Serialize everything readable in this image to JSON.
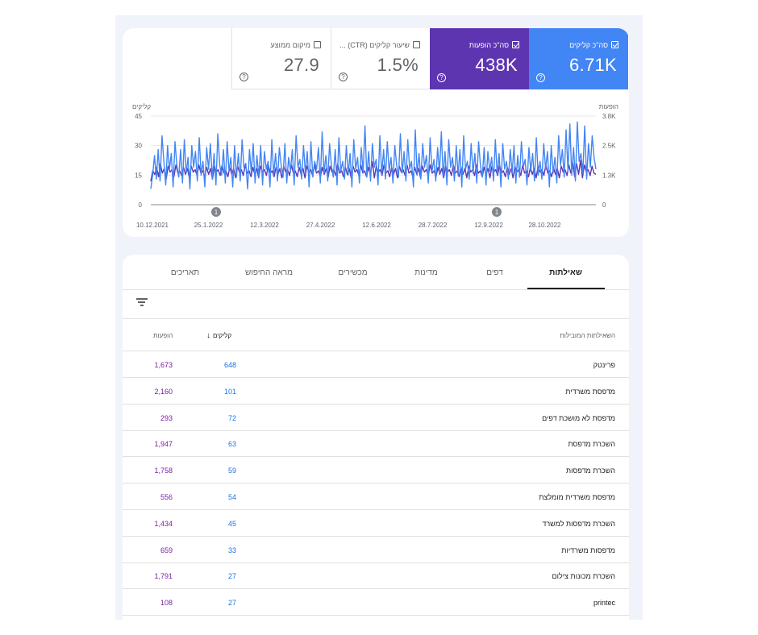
{
  "summary": {
    "clicks": {
      "label": "סה\"כ קליקים",
      "value": "6.71K",
      "checked": true,
      "color": "#4285f4"
    },
    "impressions": {
      "label": "סה\"כ הופעות",
      "value": "438K",
      "checked": true,
      "color": "#5e35b1"
    },
    "ctr": {
      "label": "שיעור קליקים (CTR) ...",
      "value": "1.5%",
      "checked": false
    },
    "position": {
      "label": "מיקום ממוצע",
      "value": "27.9",
      "checked": false
    }
  },
  "chart_data": {
    "type": "line",
    "left_axis": {
      "label": "קליקים",
      "ticks": [
        "0",
        "15",
        "30",
        "45"
      ],
      "range": [
        0,
        45
      ]
    },
    "right_axis": {
      "label": "הופעות",
      "ticks": [
        "0",
        "1.3K",
        "2.5K",
        "3.8K"
      ],
      "range": [
        0,
        3800
      ]
    },
    "x_ticks": [
      "10.12.2021",
      "25.1.2022",
      "12.3.2022",
      "27.4.2022",
      "12.6.2022",
      "28.7.2022",
      "12.9.2022",
      "28.10.2022"
    ],
    "annotations": [
      "1",
      "1"
    ],
    "series": [
      {
        "name": "קליקים",
        "color": "#4285f4",
        "axis": "left",
        "values": [
          8,
          15,
          25,
          13,
          28,
          12,
          35,
          22,
          10,
          30,
          18,
          26,
          9,
          32,
          20,
          14,
          28,
          11,
          33,
          16,
          24,
          8,
          30,
          19,
          27,
          12,
          34,
          15,
          22,
          9,
          29,
          18,
          31,
          13,
          26,
          10,
          36,
          20,
          15,
          28,
          11,
          32,
          17,
          24,
          9,
          30,
          14,
          26,
          12,
          33,
          19,
          21,
          8,
          28,
          16,
          31,
          11,
          25,
          14,
          30,
          10,
          27,
          18,
          22,
          9,
          33,
          15,
          26,
          12,
          29,
          20,
          14,
          31,
          11,
          24,
          17,
          28,
          10,
          35,
          19,
          23,
          13,
          30,
          16,
          27,
          9,
          32,
          14,
          22,
          18,
          29,
          11,
          37,
          16,
          25,
          12,
          31,
          20,
          14,
          28,
          10,
          34,
          17,
          22,
          13,
          30,
          15,
          26,
          9,
          33,
          18,
          24,
          11,
          29,
          16,
          40,
          14,
          27,
          12,
          31,
          19,
          23,
          10,
          35,
          15,
          28,
          13,
          32,
          17,
          24,
          11,
          30,
          20,
          14,
          36,
          16,
          27,
          12,
          33,
          18,
          22,
          9,
          38,
          15,
          26,
          13,
          31,
          19,
          25,
          11,
          34,
          17,
          23,
          12,
          29,
          16,
          37,
          14,
          27,
          10,
          33,
          19,
          24,
          12,
          30,
          15,
          28,
          9,
          35,
          18,
          22,
          13,
          31,
          16,
          26,
          11,
          32,
          20,
          14,
          29,
          10,
          27,
          17,
          24,
          12,
          33,
          15,
          26,
          9,
          31,
          18,
          22,
          13,
          28,
          16,
          30,
          11,
          25,
          14,
          32,
          19,
          23,
          10,
          29,
          17,
          26,
          12,
          34,
          15,
          22,
          13,
          31,
          18,
          27,
          9,
          30,
          16,
          24,
          11,
          35,
          20,
          28,
          14,
          38,
          17,
          41,
          15,
          29,
          12,
          42,
          22,
          26,
          16,
          40,
          13,
          31,
          19,
          35,
          24,
          18
        ]
      },
      {
        "name": "הופעות",
        "color": "#5e35b1",
        "axis": "right",
        "values": [
          1000,
          1450,
          1300,
          1600,
          1200,
          1750,
          1350,
          1550,
          1100,
          1650,
          1400,
          1500,
          1200,
          1700,
          1350,
          1450,
          1250,
          1600,
          1300,
          1550,
          1150,
          1650,
          1400,
          1500,
          1250,
          1700,
          1350,
          1450,
          1200,
          1600,
          1300,
          1550,
          1100,
          1650,
          1400,
          1500,
          1250,
          1700,
          1350,
          1450,
          1200,
          1600,
          1300,
          1550,
          1150,
          1650,
          1400,
          1500,
          1250,
          1700,
          1350,
          1450,
          1200,
          1600,
          1300,
          1550,
          1150,
          1650,
          1400,
          1500,
          1250,
          1700,
          1350,
          1450,
          1200,
          1600,
          1300,
          1550,
          1150,
          1650,
          1400,
          1500,
          1250,
          1700,
          1350,
          1450,
          1200,
          1600,
          1300,
          1550,
          1150,
          1650,
          1400,
          1500,
          1250,
          1700,
          1350,
          1450,
          1200,
          1600,
          1300,
          1550,
          1150,
          1650,
          1400,
          1500,
          1250,
          1750,
          1350,
          1450,
          1200,
          1600,
          1300,
          1550,
          1150,
          1650,
          1400,
          1500,
          1250,
          1700,
          1350,
          1450,
          1200,
          1600,
          1300,
          1850,
          1150,
          1650,
          1400,
          1500,
          1250,
          1700,
          1350,
          1450,
          1200,
          1600,
          1300,
          1550,
          1150,
          1650,
          1400,
          1500,
          1250,
          1700,
          1350,
          1450,
          1200,
          1600,
          1300,
          1550,
          1150,
          1650,
          1400,
          1500,
          1250,
          1700,
          1350,
          1450,
          1200,
          1600,
          1300,
          1550,
          1150,
          1650,
          1400,
          1500,
          1250,
          1700,
          1350,
          1450,
          1200,
          1600,
          1300,
          1550,
          1150,
          1650,
          1400,
          1500,
          1250,
          1700,
          1350,
          1450,
          1200,
          1600,
          1300,
          1550,
          1150,
          1650,
          1400,
          1500,
          1250,
          1700,
          1350,
          1450,
          1200,
          1600,
          1300,
          1550,
          1150,
          1650,
          1400,
          1500,
          1250,
          1700,
          1350,
          1450,
          1200,
          1600,
          1300,
          1550,
          1150,
          1650,
          1400,
          1500,
          1250,
          1700,
          1350,
          1450,
          1200,
          1600,
          1300,
          1550,
          1150,
          1650,
          1400,
          1500,
          1250,
          1700,
          1350,
          1800,
          1200,
          1750,
          1300,
          1900,
          1150,
          1700,
          1400,
          1500,
          1250,
          1650,
          1350,
          1300
        ]
      }
    ]
  },
  "tabs": [
    "שאילתות",
    "דפים",
    "מדינות",
    "מכשירים",
    "מראה החיפוש",
    "תאריכים"
  ],
  "table": {
    "headers": {
      "query": "השאילתות המובילות",
      "clicks": "קליקים",
      "impressions": "הופעות"
    },
    "rows": [
      {
        "query": "פרינטק",
        "clicks": "648",
        "impressions": "1,673"
      },
      {
        "query": "מדפסת משרדית",
        "clicks": "101",
        "impressions": "2,160"
      },
      {
        "query": "מדפסת לא מושכת דפים",
        "clicks": "72",
        "impressions": "293"
      },
      {
        "query": "השכרת מדפסת",
        "clicks": "63",
        "impressions": "1,947"
      },
      {
        "query": "השכרת מדפסות",
        "clicks": "59",
        "impressions": "1,758"
      },
      {
        "query": "מדפסת משרדית מומלצת",
        "clicks": "54",
        "impressions": "556"
      },
      {
        "query": "השכרת מדפסות למשרד",
        "clicks": "45",
        "impressions": "1,434"
      },
      {
        "query": "מדפסות משרדיות",
        "clicks": "33",
        "impressions": "659"
      },
      {
        "query": "השכרת מכונות צילום",
        "clicks": "27",
        "impressions": "1,791"
      },
      {
        "query": "printec",
        "clicks": "27",
        "impressions": "108"
      }
    ]
  }
}
